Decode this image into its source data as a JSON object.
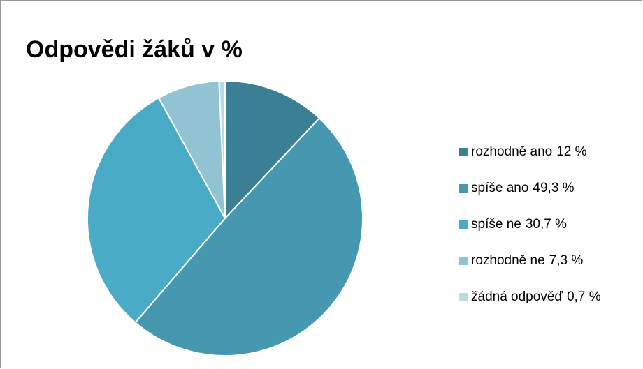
{
  "chart_data": {
    "type": "pie",
    "title": "Odpovědi žáků v %",
    "categories": [
      "rozhodně ano",
      "spíše ano",
      "spíše ne",
      "rozhodně ne",
      "žádná odpověď"
    ],
    "values": [
      12,
      49.3,
      30.7,
      7.3,
      0.7
    ],
    "value_labels": [
      "12 %",
      "49,3 %",
      "30,7 %",
      "7,3 %",
      "0,7 %"
    ],
    "colors": [
      "#3a7f94",
      "#4598b0",
      "#4aabc6",
      "#92c3d3",
      "#bcd9e4"
    ],
    "legend": "right"
  }
}
